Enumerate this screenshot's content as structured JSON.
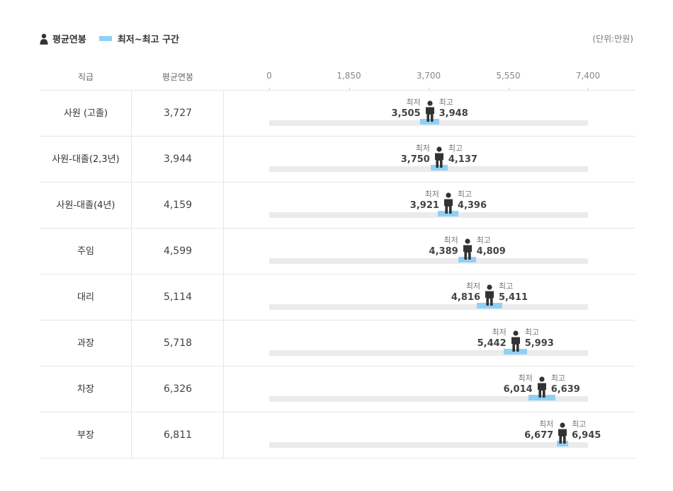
{
  "legend": {
    "avg_label": "평균연봉",
    "range_label": "최저~최고 구간"
  },
  "unit_label": "(단위:만원)",
  "columns": {
    "rank": "직급",
    "avg": "평균연봉"
  },
  "colors": {
    "range": "#8fd0f7",
    "track": "#ebebeb",
    "figure": "#333333"
  },
  "icons": {
    "legend": "person-icon",
    "marker": "person-icon"
  },
  "min_label": "최저",
  "max_label": "최고",
  "chart_data": {
    "type": "bar",
    "xlim": [
      0,
      7400
    ],
    "ticks": [
      "0",
      "1,850",
      "3,700",
      "5,550",
      "7,400"
    ],
    "tick_values": [
      0,
      1850,
      3700,
      5550,
      7400
    ],
    "rows": [
      {
        "rank": "사원 (고졸)",
        "avg": 3727,
        "avg_text": "3,727",
        "min": 3505,
        "min_text": "3,505",
        "max": 3948,
        "max_text": "3,948"
      },
      {
        "rank": "사원-대졸(2,3년)",
        "avg": 3944,
        "avg_text": "3,944",
        "min": 3750,
        "min_text": "3,750",
        "max": 4137,
        "max_text": "4,137"
      },
      {
        "rank": "사원-대졸(4년)",
        "avg": 4159,
        "avg_text": "4,159",
        "min": 3921,
        "min_text": "3,921",
        "max": 4396,
        "max_text": "4,396"
      },
      {
        "rank": "주임",
        "avg": 4599,
        "avg_text": "4,599",
        "min": 4389,
        "min_text": "4,389",
        "max": 4809,
        "max_text": "4,809"
      },
      {
        "rank": "대리",
        "avg": 5114,
        "avg_text": "5,114",
        "min": 4816,
        "min_text": "4,816",
        "max": 5411,
        "max_text": "5,411"
      },
      {
        "rank": "과장",
        "avg": 5718,
        "avg_text": "5,718",
        "min": 5442,
        "min_text": "5,442",
        "max": 5993,
        "max_text": "5,993"
      },
      {
        "rank": "차장",
        "avg": 6326,
        "avg_text": "6,326",
        "min": 6014,
        "min_text": "6,014",
        "max": 6639,
        "max_text": "6,639"
      },
      {
        "rank": "부장",
        "avg": 6811,
        "avg_text": "6,811",
        "min": 6677,
        "min_text": "6,677",
        "max": 6945,
        "max_text": "6,945"
      }
    ]
  }
}
